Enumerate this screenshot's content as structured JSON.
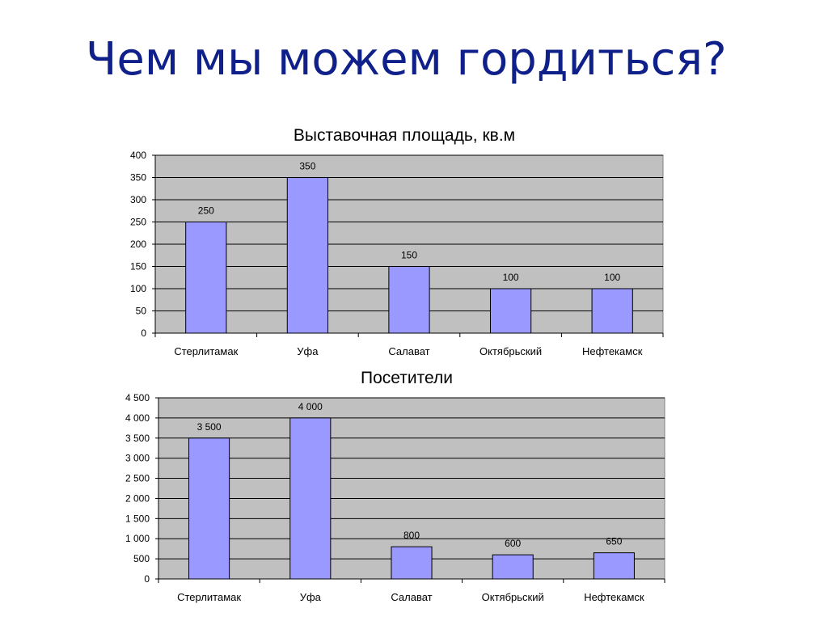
{
  "slide": {
    "title": "Чем мы можем гордиться?"
  },
  "colors": {
    "title_text": "#10208a",
    "plot_background": "#c0c0c0",
    "bar_fill": "#9999ff",
    "bar_stroke": "#000000",
    "gridline": "#000000"
  },
  "chart_data": [
    {
      "type": "bar",
      "title": "Выставочная площадь, кв.м",
      "categories": [
        "Стерлитамак",
        "Уфа",
        "Салават",
        "Октябрьский",
        "Нефтекамск"
      ],
      "values": [
        250,
        350,
        150,
        100,
        100
      ],
      "value_labels": [
        "250",
        "350",
        "150",
        "100",
        "100"
      ],
      "ylim": [
        0,
        400
      ],
      "yticks": [
        0,
        50,
        100,
        150,
        200,
        250,
        300,
        350,
        400
      ],
      "ytick_labels": [
        "0",
        "50",
        "100",
        "150",
        "200",
        "250",
        "300",
        "350",
        "400"
      ],
      "xlabel": "",
      "ylabel": "",
      "grid": true,
      "legend": "none"
    },
    {
      "type": "bar",
      "title": "Посетители",
      "categories": [
        "Стерлитамак",
        "Уфа",
        "Салават",
        "Октябрьский",
        "Нефтекамск"
      ],
      "values": [
        3500,
        4000,
        800,
        600,
        650
      ],
      "value_labels": [
        "3 500",
        "4 000",
        "800",
        "600",
        "650"
      ],
      "ylim": [
        0,
        4500
      ],
      "yticks": [
        0,
        500,
        1000,
        1500,
        2000,
        2500,
        3000,
        3500,
        4000,
        4500
      ],
      "ytick_labels": [
        "0",
        "500",
        "1 000",
        "1 500",
        "2 000",
        "2 500",
        "3 000",
        "3 500",
        "4 000",
        "4 500"
      ],
      "xlabel": "",
      "ylabel": "",
      "grid": true,
      "legend": "none"
    }
  ]
}
